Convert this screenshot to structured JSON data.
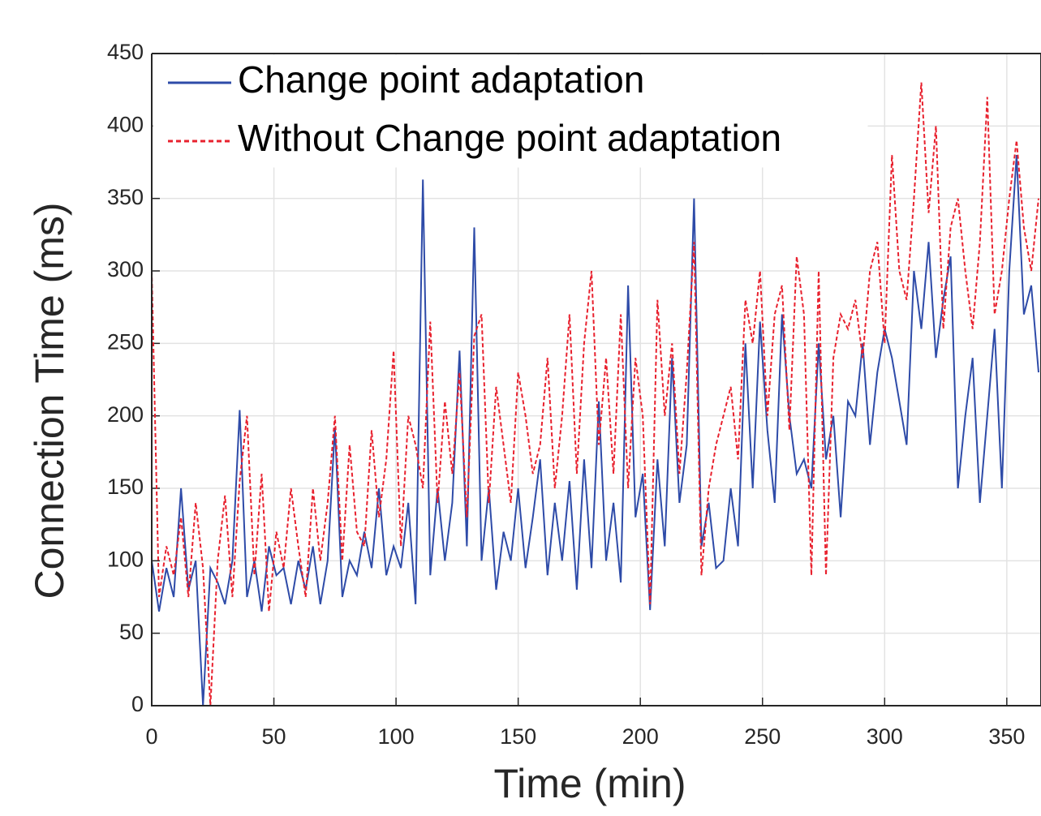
{
  "chart_data": {
    "type": "line",
    "xlabel": "Time (min)",
    "ylabel": "Connection Time (ms)",
    "x": [
      0,
      3,
      6,
      9,
      12,
      15,
      18,
      21,
      24,
      27,
      30,
      33,
      36,
      39,
      42,
      45,
      48,
      51,
      54,
      57,
      60,
      63,
      66,
      69,
      72,
      75,
      78,
      81,
      84,
      87,
      90,
      93,
      96,
      99,
      102,
      105,
      108,
      111,
      114,
      117,
      120,
      123,
      126,
      129,
      132,
      135,
      138,
      141,
      144,
      147,
      150,
      153,
      156,
      159,
      162,
      165,
      168,
      171,
      174,
      177,
      180,
      183,
      186,
      189,
      192,
      195,
      198,
      201,
      204,
      207,
      210,
      213,
      216,
      219,
      222,
      225,
      228,
      231,
      234,
      237,
      240,
      243,
      246,
      249,
      252,
      255,
      258,
      261,
      264,
      267,
      270,
      273,
      276,
      279,
      282,
      285,
      288,
      291,
      294,
      297,
      300,
      303,
      306,
      309,
      312,
      315,
      318,
      321,
      324,
      327,
      330,
      333,
      336,
      339,
      342,
      345,
      348,
      351,
      354,
      357,
      360,
      363
    ],
    "series": [
      {
        "name": "Change point adaptation",
        "color": "#2e4ba8",
        "dash": false,
        "values": [
          100,
          65,
          95,
          75,
          150,
          80,
          100,
          0,
          95,
          85,
          70,
          100,
          204,
          75,
          100,
          65,
          110,
          90,
          95,
          70,
          100,
          80,
          110,
          70,
          100,
          192,
          75,
          100,
          90,
          120,
          95,
          150,
          90,
          110,
          95,
          140,
          70,
          363,
          90,
          150,
          100,
          140,
          245,
          110,
          330,
          100,
          150,
          80,
          120,
          100,
          150,
          95,
          130,
          170,
          90,
          140,
          100,
          155,
          80,
          170,
          95,
          210,
          100,
          140,
          85,
          290,
          130,
          160,
          66,
          170,
          110,
          240,
          140,
          180,
          350,
          110,
          140,
          95,
          100,
          150,
          110,
          250,
          150,
          265,
          190,
          140,
          270,
          200,
          160,
          170,
          150,
          250,
          170,
          200,
          130,
          210,
          200,
          250,
          180,
          230,
          260,
          240,
          210,
          180,
          300,
          260,
          320,
          240,
          280,
          310,
          150,
          200,
          240,
          140,
          200,
          260,
          150,
          300,
          380,
          270,
          290,
          230
        ]
      },
      {
        "name": "Without Change point adaptation",
        "color": "#e8212e",
        "dash": true,
        "values": [
          300,
          75,
          110,
          90,
          130,
          75,
          140,
          95,
          0,
          100,
          145,
          75,
          155,
          200,
          90,
          160,
          65,
          120,
          95,
          150,
          110,
          75,
          150,
          100,
          140,
          200,
          100,
          180,
          120,
          110,
          190,
          130,
          170,
          245,
          110,
          200,
          180,
          150,
          265,
          140,
          210,
          160,
          230,
          130,
          255,
          270,
          140,
          220,
          180,
          140,
          230,
          200,
          160,
          180,
          240,
          150,
          200,
          270,
          160,
          250,
          300,
          180,
          240,
          160,
          270,
          150,
          240,
          200,
          70,
          280,
          200,
          250,
          160,
          230,
          320,
          90,
          150,
          180,
          200,
          220,
          170,
          280,
          250,
          300,
          200,
          270,
          290,
          190,
          310,
          270,
          90,
          300,
          90,
          240,
          270,
          260,
          280,
          240,
          300,
          320,
          250,
          380,
          300,
          280,
          350,
          430,
          340,
          400,
          260,
          330,
          350,
          300,
          260,
          320,
          420,
          270,
          300,
          350,
          390,
          330,
          300,
          350
        ]
      }
    ],
    "xlim": [
      0,
      364
    ],
    "ylim": [
      0,
      450
    ],
    "xticks": [
      0,
      50,
      100,
      150,
      200,
      250,
      300,
      350
    ],
    "yticks": [
      0,
      50,
      100,
      150,
      200,
      250,
      300,
      350,
      400,
      450
    ],
    "grid": true,
    "legend": "upper left"
  }
}
